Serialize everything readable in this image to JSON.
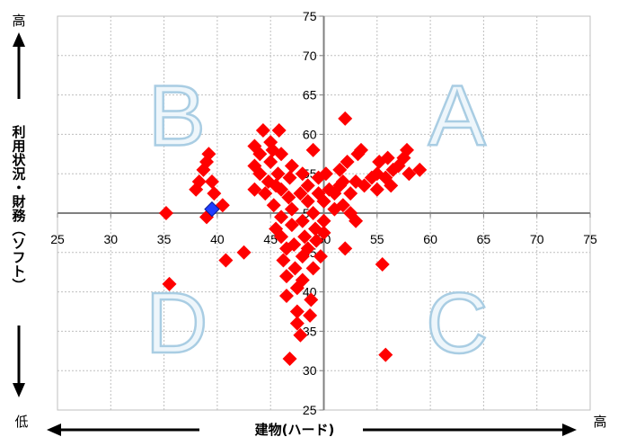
{
  "chart_data": {
    "type": "scatter",
    "xlabel": "建物(ハード)",
    "ylabel": "利用状況・財務(ソフト)",
    "xlim": [
      25,
      75
    ],
    "ylim": [
      25,
      75
    ],
    "center": [
      50,
      50
    ],
    "x_ticks": [
      "25",
      "30",
      "35",
      "40",
      "45",
      "50",
      "55",
      "60",
      "65",
      "70",
      "75"
    ],
    "y_ticks": [
      "25",
      "30",
      "35",
      "40",
      "45",
      "50",
      "55",
      "60",
      "65",
      "70",
      "75"
    ],
    "grid": true,
    "quadrant_labels": [
      "A",
      "B",
      "C",
      "D"
    ],
    "high_label_y": "高",
    "low_label": "低",
    "high_label_x": "高",
    "colors": {
      "main": "#ff0000",
      "highlight": "#1f3dff",
      "axis": "#808080",
      "grid": "#bfbfbf",
      "quadrant_fill": "#eef6fb",
      "quadrant_stroke": "#a9cde3"
    },
    "series": [
      {
        "points": [
          [
            35.2,
            50
          ],
          [
            35.5,
            41
          ],
          [
            38,
            53
          ],
          [
            38.3,
            54
          ],
          [
            38.7,
            55.5
          ],
          [
            39,
            56.5
          ],
          [
            39.2,
            57.5
          ],
          [
            39.5,
            54
          ],
          [
            39.7,
            52.5
          ],
          [
            39,
            49.5
          ],
          [
            40.5,
            51
          ],
          [
            40.8,
            44
          ],
          [
            42.5,
            45
          ],
          [
            43.5,
            58.5
          ],
          [
            43.5,
            56
          ],
          [
            43.5,
            53
          ],
          [
            44,
            55
          ],
          [
            44,
            57.5
          ],
          [
            44.3,
            60.5
          ],
          [
            44.5,
            52.5
          ],
          [
            44.8,
            54
          ],
          [
            45,
            59
          ],
          [
            45,
            56.5
          ],
          [
            45.2,
            58
          ],
          [
            45.3,
            51
          ],
          [
            45.5,
            53.5
          ],
          [
            45.5,
            48
          ],
          [
            45.7,
            55
          ],
          [
            45.8,
            60.5
          ],
          [
            46,
            57.5
          ],
          [
            46,
            53
          ],
          [
            46,
            49.5
          ],
          [
            46,
            47
          ],
          [
            46.2,
            44
          ],
          [
            46.5,
            45.5
          ],
          [
            46.5,
            42
          ],
          [
            46.5,
            39.5
          ],
          [
            46.7,
            52
          ],
          [
            46.8,
            54.5
          ],
          [
            47,
            56
          ],
          [
            47,
            50.5
          ],
          [
            47,
            48.5
          ],
          [
            47.2,
            46
          ],
          [
            47.3,
            43
          ],
          [
            47.5,
            37.5
          ],
          [
            47.5,
            40.5
          ],
          [
            47.5,
            36
          ],
          [
            47.8,
            34.5
          ],
          [
            47.8,
            52.5
          ],
          [
            48,
            55
          ],
          [
            48,
            49
          ],
          [
            48,
            44.5
          ],
          [
            48,
            41.5
          ],
          [
            48.2,
            47
          ],
          [
            48.5,
            51.5
          ],
          [
            48.5,
            53.5
          ],
          [
            48.5,
            45.5
          ],
          [
            48.7,
            37
          ],
          [
            48.8,
            39
          ],
          [
            49,
            43
          ],
          [
            49,
            58
          ],
          [
            49,
            50
          ],
          [
            49.2,
            48
          ],
          [
            49.3,
            46.5
          ],
          [
            49.5,
            52.5
          ],
          [
            49.5,
            54.5
          ],
          [
            49.7,
            44.5
          ],
          [
            50,
            47.5
          ],
          [
            50,
            49
          ],
          [
            50,
            51.5
          ],
          [
            50.2,
            55
          ],
          [
            50.5,
            53
          ],
          [
            51,
            50.5
          ],
          [
            51,
            52.5
          ],
          [
            51.5,
            53.5
          ],
          [
            51.5,
            55.5
          ],
          [
            51.8,
            51
          ],
          [
            51.8,
            54
          ],
          [
            52,
            62
          ],
          [
            52,
            45.5
          ],
          [
            52.2,
            56.5
          ],
          [
            52.5,
            50
          ],
          [
            52.5,
            52.5
          ],
          [
            53,
            54
          ],
          [
            53,
            49
          ],
          [
            53.2,
            57.5
          ],
          [
            53.5,
            58
          ],
          [
            53.8,
            53.5
          ],
          [
            54.5,
            54.5
          ],
          [
            55,
            53
          ],
          [
            55,
            55
          ],
          [
            55.2,
            56.5
          ],
          [
            55.5,
            43.5
          ],
          [
            55.8,
            54.5
          ],
          [
            56,
            57
          ],
          [
            56.3,
            53.5
          ],
          [
            56.5,
            55.5
          ],
          [
            57,
            56
          ],
          [
            57.5,
            57
          ],
          [
            57.8,
            58
          ],
          [
            58,
            55
          ],
          [
            59,
            55.5
          ],
          [
            55.8,
            32
          ],
          [
            46.8,
            31.5
          ]
        ]
      },
      {
        "points": [
          [
            39.5,
            50.5
          ]
        ],
        "highlight": true
      }
    ]
  }
}
